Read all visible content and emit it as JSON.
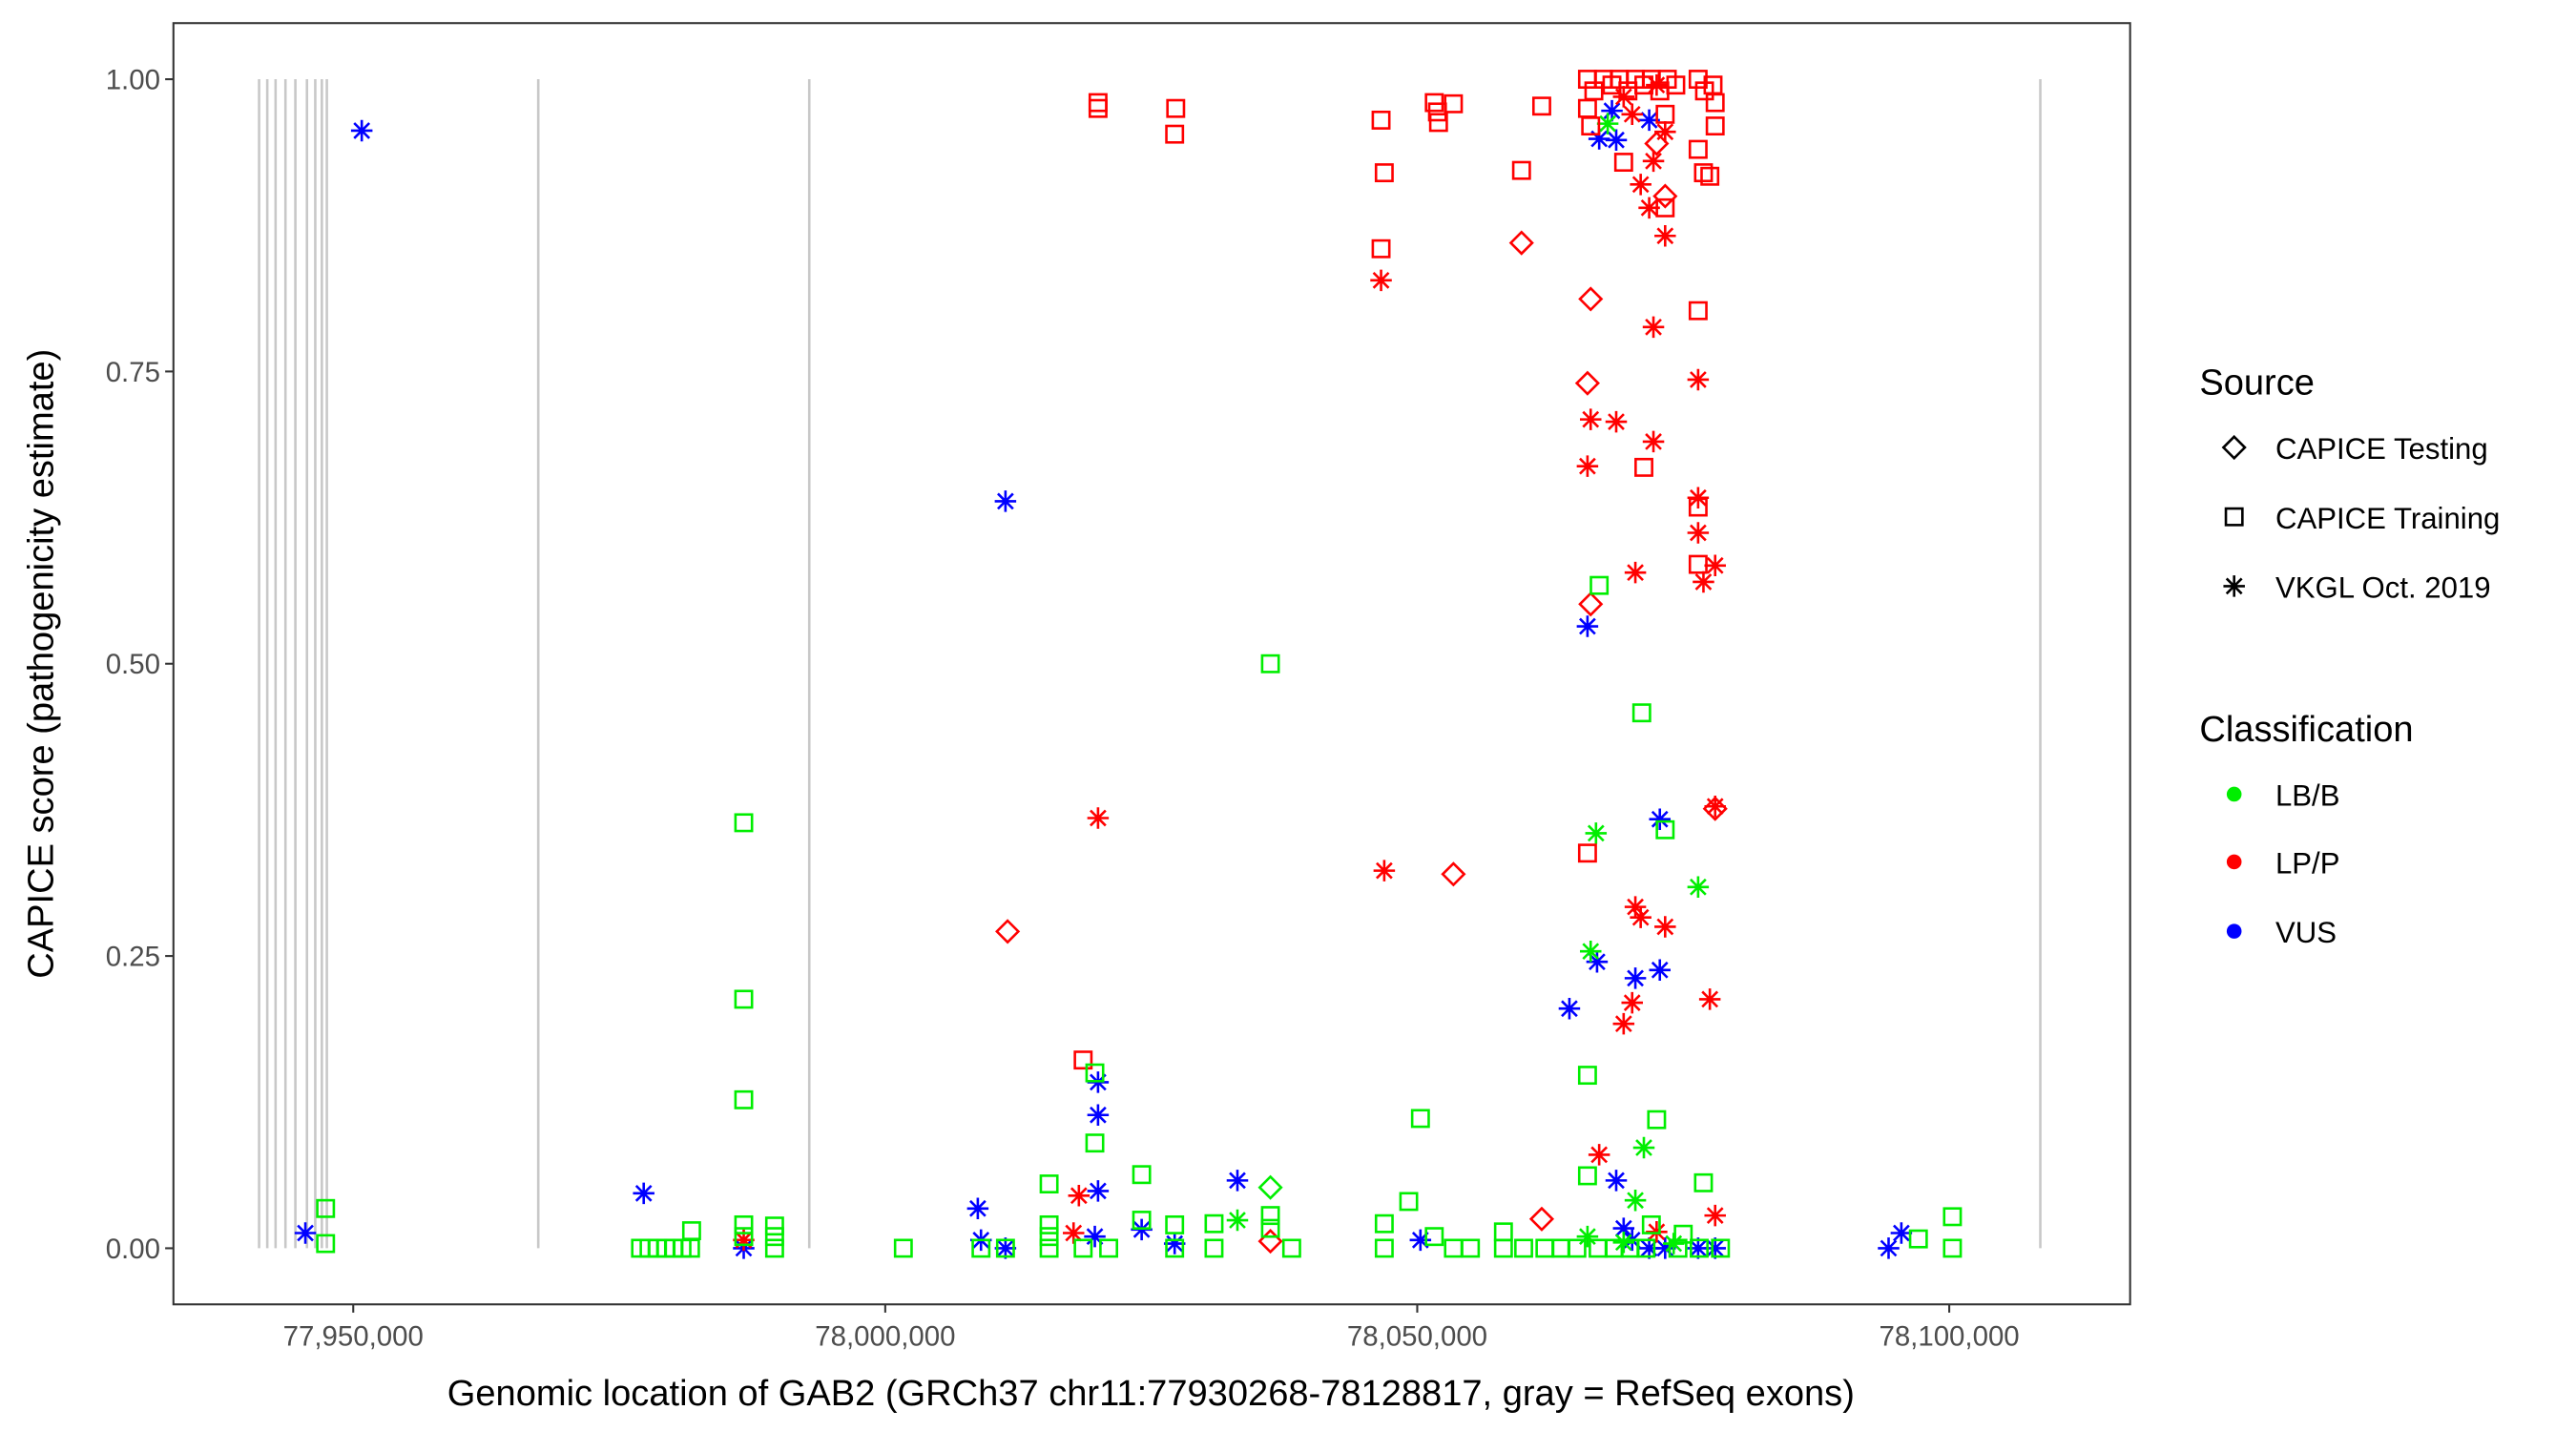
{
  "chart_data": {
    "type": "scatter",
    "title": "",
    "xlabel": "Genomic location of GAB2 (GRCh37 chr11:77930268-78128817, gray = RefSeq exons)",
    "ylabel": "CAPICE score (pathogenicity estimate)",
    "xlim": [
      77933100,
      78117000
    ],
    "ylim": [
      -0.048,
      1.048
    ],
    "grid": false,
    "x_ticks": [
      77950000,
      78000000,
      78050000,
      78100000
    ],
    "x_tick_labels": [
      "77,950,000",
      "78,000,000",
      "78,050,000",
      "78,100,000"
    ],
    "y_ticks": [
      0,
      0.25,
      0.5,
      0.75,
      1.0
    ],
    "y_tick_labels": [
      "0.00",
      "0.25",
      "0.50",
      "0.75",
      "1.00"
    ],
    "exon_color": "#c8c8c8",
    "exons": [
      77941150,
      77941920,
      77942700,
      77943630,
      77944560,
      77945650,
      77946430,
      77947050,
      77947520,
      77967390,
      77992860,
      78108560
    ],
    "legend_position": "right",
    "sources": {
      "title": "Source",
      "items": [
        {
          "label": "CAPICE Testing",
          "shape": "diamond"
        },
        {
          "label": "CAPICE Training",
          "shape": "square"
        },
        {
          "label": "VKGL Oct. 2019",
          "shape": "asterisk"
        }
      ]
    },
    "classes": {
      "title": "Classification",
      "items": [
        {
          "label": "LB/B",
          "color": "#00ee00"
        },
        {
          "label": "LP/P",
          "color": "#ff0000"
        },
        {
          "label": "VUS",
          "color": "#0000ff"
        }
      ]
    },
    "point_fields": [
      "position",
      "score",
      "source_index",
      "class_index"
    ],
    "points": [
      [
        77950800,
        0.956,
        2,
        2
      ],
      [
        77945500,
        0.013,
        2,
        2
      ],
      [
        77977300,
        0.047,
        2,
        2
      ],
      [
        77986700,
        0.0,
        2,
        2
      ],
      [
        78011300,
        0.639,
        2,
        2
      ],
      [
        78008700,
        0.034,
        2,
        2
      ],
      [
        78009000,
        0.007,
        2,
        2
      ],
      [
        78011300,
        0.0,
        2,
        2
      ],
      [
        78020000,
        0.142,
        2,
        2
      ],
      [
        78020000,
        0.114,
        2,
        2
      ],
      [
        78020000,
        0.049,
        2,
        2
      ],
      [
        78019700,
        0.01,
        2,
        2
      ],
      [
        78024100,
        0.016,
        2,
        2
      ],
      [
        78027200,
        0.004,
        2,
        2
      ],
      [
        78033100,
        0.058,
        2,
        2
      ],
      [
        78050300,
        0.007,
        2,
        2
      ],
      [
        78064300,
        0.205,
        2,
        2
      ],
      [
        78066000,
        0.532,
        2,
        2
      ],
      [
        78066900,
        0.245,
        2,
        2
      ],
      [
        78067100,
        0.949,
        2,
        2
      ],
      [
        78068700,
        0.948,
        2,
        2
      ],
      [
        78068300,
        0.973,
        2,
        2
      ],
      [
        78070500,
        0.231,
        2,
        2
      ],
      [
        78072800,
        0.367,
        2,
        2
      ],
      [
        78072800,
        0.238,
        2,
        2
      ],
      [
        78071800,
        0.965,
        2,
        2
      ],
      [
        78068700,
        0.058,
        2,
        2
      ],
      [
        78069400,
        0.017,
        2,
        2
      ],
      [
        78070200,
        0.007,
        2,
        2
      ],
      [
        78071800,
        0.0,
        2,
        2
      ],
      [
        78073300,
        0.0,
        2,
        2
      ],
      [
        78076400,
        0.0,
        2,
        2
      ],
      [
        78078000,
        0.0,
        2,
        2
      ],
      [
        78094300,
        0.0,
        2,
        2
      ],
      [
        78095500,
        0.013,
        2,
        2
      ],
      [
        78046600,
        0.828,
        2,
        1
      ],
      [
        78046900,
        0.323,
        2,
        1
      ],
      [
        78020000,
        0.368,
        2,
        1
      ],
      [
        78018200,
        0.045,
        2,
        1
      ],
      [
        78017700,
        0.013,
        2,
        1
      ],
      [
        78066300,
        0.709,
        2,
        1
      ],
      [
        78068700,
        0.707,
        2,
        1
      ],
      [
        78066000,
        0.669,
        2,
        1
      ],
      [
        78072200,
        0.69,
        2,
        1
      ],
      [
        78072200,
        0.788,
        2,
        1
      ],
      [
        78073300,
        0.866,
        2,
        1
      ],
      [
        78076400,
        0.743,
        2,
        1
      ],
      [
        78076400,
        0.642,
        2,
        1
      ],
      [
        78076400,
        0.612,
        2,
        1
      ],
      [
        78076900,
        0.57,
        2,
        1
      ],
      [
        78078000,
        0.584,
        2,
        1
      ],
      [
        78070500,
        0.578,
        2,
        1
      ],
      [
        78070500,
        0.292,
        2,
        1
      ],
      [
        78071000,
        0.283,
        2,
        1
      ],
      [
        78073300,
        0.275,
        2,
        1
      ],
      [
        78070200,
        0.21,
        2,
        1
      ],
      [
        78069400,
        0.192,
        2,
        1
      ],
      [
        78077500,
        0.213,
        2,
        1
      ],
      [
        78078000,
        0.378,
        2,
        1
      ],
      [
        78067100,
        0.08,
        2,
        1
      ],
      [
        78078000,
        0.028,
        2,
        1
      ],
      [
        78072500,
        0.014,
        2,
        1
      ],
      [
        77986700,
        0.007,
        2,
        1
      ],
      [
        78071000,
        0.91,
        2,
        1
      ],
      [
        78071800,
        0.89,
        2,
        1
      ],
      [
        78072200,
        0.93,
        2,
        1
      ],
      [
        78070200,
        0.97,
        2,
        1
      ],
      [
        78073300,
        0.955,
        2,
        1
      ],
      [
        78069400,
        0.985,
        2,
        1
      ],
      [
        78072500,
        0.995,
        2,
        1
      ],
      [
        78066800,
        0.355,
        2,
        0
      ],
      [
        78076400,
        0.309,
        2,
        0
      ],
      [
        78066300,
        0.254,
        2,
        0
      ],
      [
        78071300,
        0.086,
        2,
        0
      ],
      [
        78070500,
        0.041,
        2,
        0
      ],
      [
        78033100,
        0.024,
        2,
        0
      ],
      [
        78067900,
        0.962,
        2,
        0
      ],
      [
        78066000,
        0.01,
        2,
        0
      ],
      [
        78069400,
        0.005,
        2,
        0
      ],
      [
        78074100,
        0.004,
        2,
        0
      ],
      [
        78011500,
        0.271,
        0,
        1
      ],
      [
        78059800,
        0.86,
        0,
        1
      ],
      [
        78066300,
        0.812,
        0,
        1
      ],
      [
        78066000,
        0.74,
        0,
        1
      ],
      [
        78066300,
        0.551,
        0,
        1
      ],
      [
        78053400,
        0.32,
        0,
        1
      ],
      [
        78061700,
        0.025,
        0,
        1
      ],
      [
        78036200,
        0.006,
        0,
        1
      ],
      [
        78078000,
        0.376,
        0,
        1
      ],
      [
        78073300,
        0.9,
        0,
        1
      ],
      [
        78072500,
        0.945,
        0,
        1
      ],
      [
        78036200,
        0.052,
        0,
        0
      ],
      [
        78020000,
        0.98,
        1,
        1
      ],
      [
        78020000,
        0.975,
        1,
        1
      ],
      [
        78027200,
        0.953,
        1,
        1
      ],
      [
        78027300,
        0.975,
        1,
        1
      ],
      [
        78046600,
        0.965,
        1,
        1
      ],
      [
        78046900,
        0.92,
        1,
        1
      ],
      [
        78046600,
        0.855,
        1,
        1
      ],
      [
        78051600,
        0.98,
        1,
        1
      ],
      [
        78051900,
        0.972,
        1,
        1
      ],
      [
        78052000,
        0.963,
        1,
        1
      ],
      [
        78053400,
        0.979,
        1,
        1
      ],
      [
        78059800,
        0.922,
        1,
        1
      ],
      [
        78061700,
        0.977,
        1,
        1
      ],
      [
        78018600,
        0.161,
        1,
        1
      ],
      [
        78066000,
        0.338,
        1,
        1
      ],
      [
        78071300,
        0.668,
        1,
        1
      ],
      [
        78076400,
        0.802,
        1,
        1
      ],
      [
        78076400,
        0.634,
        1,
        1
      ],
      [
        78076400,
        0.585,
        1,
        1
      ],
      [
        78076400,
        0.94,
        1,
        1
      ],
      [
        78076900,
        0.92,
        1,
        1
      ],
      [
        78077500,
        0.917,
        1,
        1
      ],
      [
        78078000,
        0.96,
        1,
        1
      ],
      [
        78078000,
        0.98,
        1,
        1
      ],
      [
        78069400,
        0.929,
        1,
        1
      ],
      [
        78073300,
        0.89,
        1,
        1
      ],
      [
        78066000,
        1.0,
        1,
        1
      ],
      [
        78066600,
        0.99,
        1,
        1
      ],
      [
        78067500,
        1.0,
        1,
        1
      ],
      [
        78068300,
        0.995,
        1,
        1
      ],
      [
        78069000,
        1.0,
        1,
        1
      ],
      [
        78069800,
        0.99,
        1,
        1
      ],
      [
        78070500,
        1.0,
        1,
        1
      ],
      [
        78071300,
        0.995,
        1,
        1
      ],
      [
        78072000,
        1.0,
        1,
        1
      ],
      [
        78072800,
        0.99,
        1,
        1
      ],
      [
        78073500,
        1.0,
        1,
        1
      ],
      [
        78074300,
        0.995,
        1,
        1
      ],
      [
        78076400,
        1.0,
        1,
        1
      ],
      [
        78077000,
        0.99,
        1,
        1
      ],
      [
        78077800,
        0.995,
        1,
        1
      ],
      [
        78066000,
        0.975,
        1,
        1
      ],
      [
        78066300,
        0.96,
        1,
        1
      ],
      [
        78073300,
        0.97,
        1,
        1
      ],
      [
        77947400,
        0.034,
        1,
        0
      ],
      [
        77947400,
        0.004,
        1,
        0
      ],
      [
        77986700,
        0.364,
        1,
        0
      ],
      [
        77986700,
        0.213,
        1,
        0
      ],
      [
        77986700,
        0.127,
        1,
        0
      ],
      [
        77986700,
        0.02,
        1,
        0
      ],
      [
        77986700,
        0.01,
        1,
        0
      ],
      [
        77989600,
        0.019,
        1,
        0
      ],
      [
        77989600,
        0.01,
        1,
        0
      ],
      [
        77989600,
        0.0,
        1,
        0
      ],
      [
        77977000,
        0.0,
        1,
        0
      ],
      [
        77977800,
        0.0,
        1,
        0
      ],
      [
        77978600,
        0.0,
        1,
        0
      ],
      [
        77979400,
        0.0,
        1,
        0
      ],
      [
        77980100,
        0.0,
        1,
        0
      ],
      [
        77980900,
        0.0,
        1,
        0
      ],
      [
        77981700,
        0.0,
        1,
        0
      ],
      [
        77981800,
        0.015,
        1,
        0
      ],
      [
        78001700,
        0.0,
        1,
        0
      ],
      [
        78015400,
        0.055,
        1,
        0
      ],
      [
        78015400,
        0.02,
        1,
        0
      ],
      [
        78015400,
        0.01,
        1,
        0
      ],
      [
        78015400,
        0.0,
        1,
        0
      ],
      [
        78019700,
        0.09,
        1,
        0
      ],
      [
        78019700,
        0.15,
        1,
        0
      ],
      [
        78024100,
        0.063,
        1,
        0
      ],
      [
        78024100,
        0.024,
        1,
        0
      ],
      [
        78027200,
        0.02,
        1,
        0
      ],
      [
        78030900,
        0.021,
        1,
        0
      ],
      [
        78030900,
        0.0,
        1,
        0
      ],
      [
        78036200,
        0.5,
        1,
        0
      ],
      [
        78036200,
        0.028,
        1,
        0
      ],
      [
        78036200,
        0.017,
        1,
        0
      ],
      [
        78038200,
        0.0,
        1,
        0
      ],
      [
        78049200,
        0.04,
        1,
        0
      ],
      [
        78050300,
        0.111,
        1,
        0
      ],
      [
        78046900,
        0.021,
        1,
        0
      ],
      [
        78046900,
        0.0,
        1,
        0
      ],
      [
        78051600,
        0.01,
        1,
        0
      ],
      [
        78058100,
        0.014,
        1,
        0
      ],
      [
        78066000,
        0.148,
        1,
        0
      ],
      [
        78066000,
        0.062,
        1,
        0
      ],
      [
        78067100,
        0.567,
        1,
        0
      ],
      [
        78071100,
        0.458,
        1,
        0
      ],
      [
        78072500,
        0.11,
        1,
        0
      ],
      [
        78073300,
        0.358,
        1,
        0
      ],
      [
        78076900,
        0.056,
        1,
        0
      ],
      [
        78100300,
        0.027,
        1,
        0
      ],
      [
        78097100,
        0.008,
        1,
        0
      ],
      [
        78100300,
        0.0,
        1,
        0
      ],
      [
        78009000,
        0.0,
        1,
        0
      ],
      [
        78011300,
        0.0,
        1,
        0
      ],
      [
        78018600,
        0.0,
        1,
        0
      ],
      [
        78021000,
        0.0,
        1,
        0
      ],
      [
        78027200,
        0.0,
        1,
        0
      ],
      [
        78053400,
        0.0,
        1,
        0
      ],
      [
        78055000,
        0.0,
        1,
        0
      ],
      [
        78058100,
        0.0,
        1,
        0
      ],
      [
        78060000,
        0.0,
        1,
        0
      ],
      [
        78062000,
        0.0,
        1,
        0
      ],
      [
        78063500,
        0.0,
        1,
        0
      ],
      [
        78065000,
        0.0,
        1,
        0
      ],
      [
        78067000,
        0.0,
        1,
        0
      ],
      [
        78068500,
        0.0,
        1,
        0
      ],
      [
        78070000,
        0.0,
        1,
        0
      ],
      [
        78071500,
        0.0,
        1,
        0
      ],
      [
        78074500,
        0.0,
        1,
        0
      ],
      [
        78076500,
        0.0,
        1,
        0
      ],
      [
        78078500,
        0.0,
        1,
        0
      ],
      [
        78072000,
        0.02,
        1,
        0
      ],
      [
        78075000,
        0.012,
        1,
        0
      ]
    ]
  }
}
